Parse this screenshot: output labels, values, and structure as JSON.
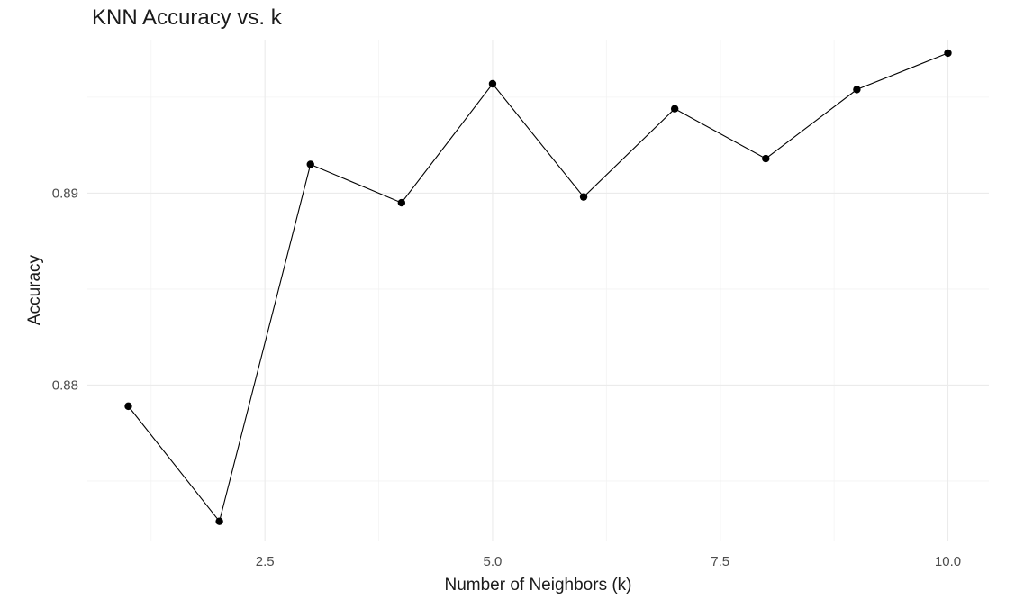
{
  "chart_data": {
    "type": "line",
    "title": "KNN Accuracy vs. k",
    "xlabel": "Number of Neighbors (k)",
    "ylabel": "Accuracy",
    "x": [
      1,
      2,
      3,
      4,
      5,
      6,
      7,
      8,
      9,
      10
    ],
    "series": [
      {
        "values": [
          0.8789,
          0.8729,
          0.8915,
          0.8895,
          0.8957,
          0.8898,
          0.8944,
          0.8918,
          0.8954,
          0.8973
        ]
      }
    ],
    "xlim": [
      0.55,
      10.45
    ],
    "ylim": [
      0.8719,
      0.898
    ],
    "x_ticks": [
      2.5,
      5.0,
      7.5,
      10.0
    ],
    "x_tick_labels": [
      "2.5",
      "5.0",
      "7.5",
      "10.0"
    ],
    "y_ticks": [
      0.88,
      0.89
    ],
    "y_tick_labels": [
      "0.88",
      "0.89"
    ],
    "x_minor_ticks": [
      1.25,
      3.75,
      6.25,
      8.75
    ],
    "y_minor_ticks": [
      0.875,
      0.885,
      0.895
    ],
    "grid": true,
    "legend": "none",
    "line_color": "#000000",
    "point_color": "#000000"
  }
}
